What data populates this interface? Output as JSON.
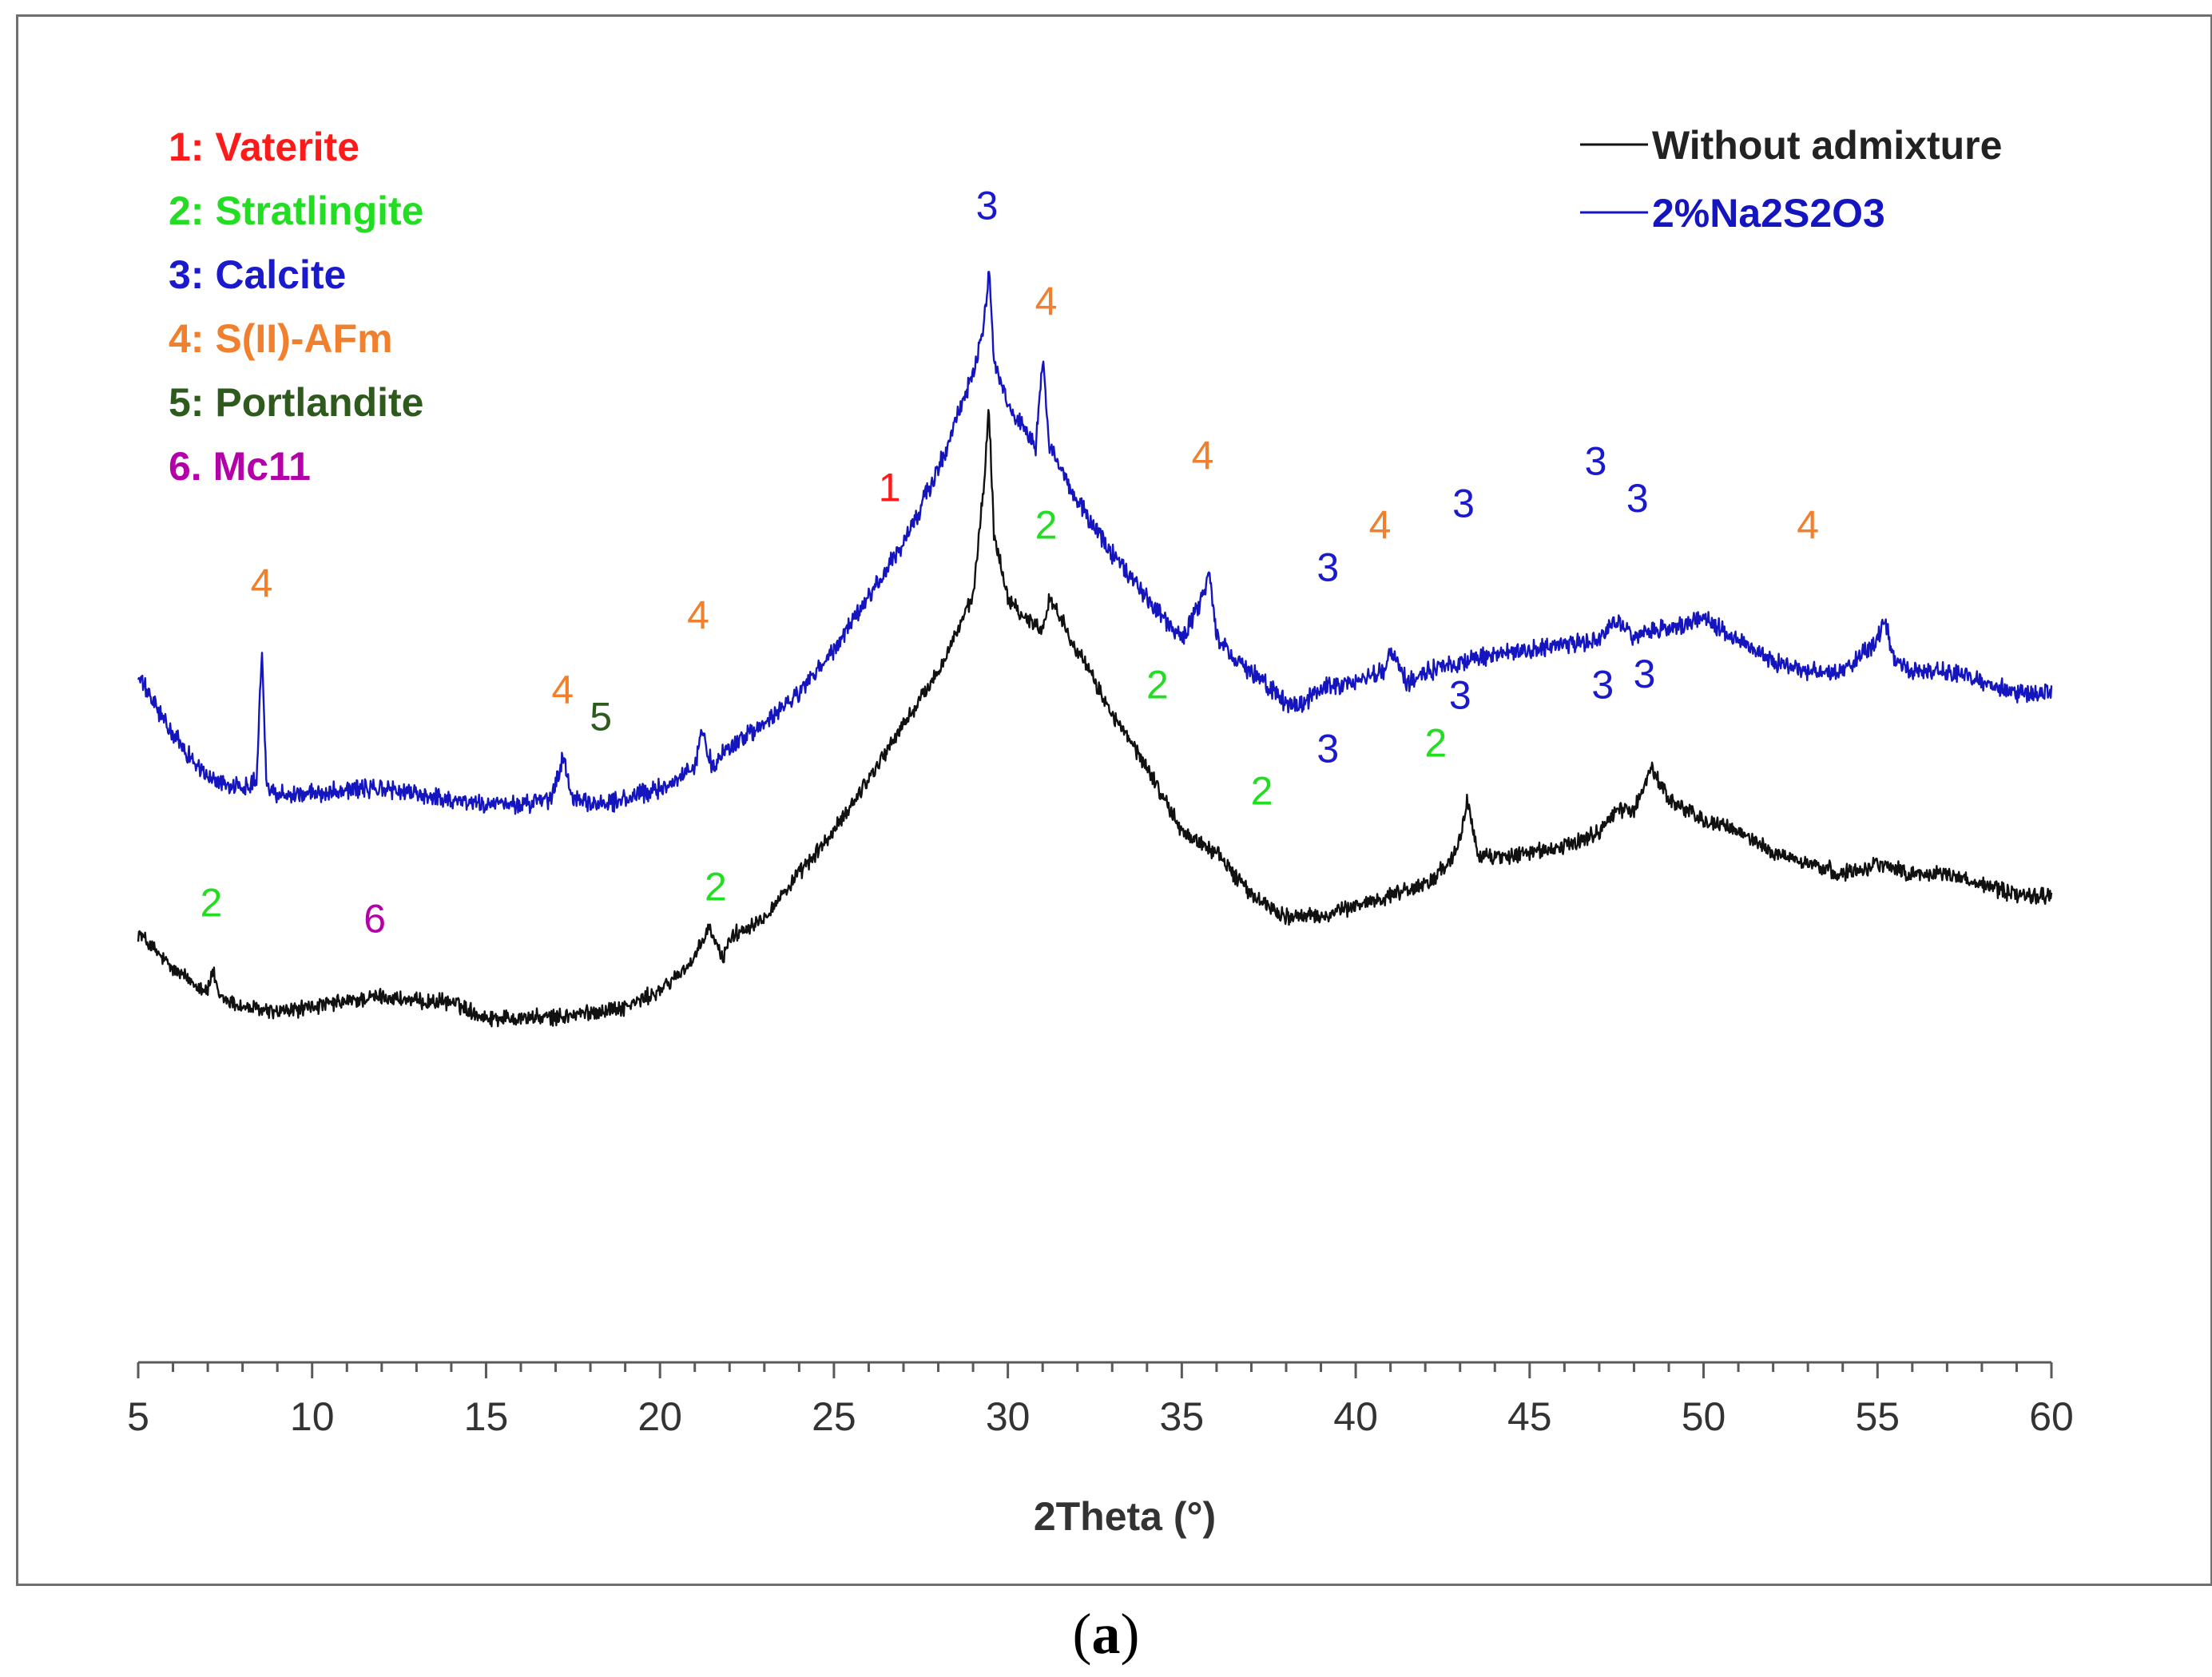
{
  "chart_data": {
    "type": "line",
    "title": "",
    "xlabel": "2Theta (°)",
    "ylabel": "",
    "xlim": [
      5,
      60
    ],
    "xticks": [
      5,
      10,
      15,
      20,
      25,
      30,
      35,
      40,
      45,
      50,
      55,
      60
    ],
    "minor_tick_step": 1,
    "legend_position": "top-right",
    "phase_key": [
      {
        "label": "1: Vaterite",
        "color": "#ff1a1a"
      },
      {
        "label": "2: Stratlingite",
        "color": "#22dd22"
      },
      {
        "label": "3: Calcite",
        "color": "#1a1acc"
      },
      {
        "label": "4: S(II)-AFm",
        "color": "#f07f2e"
      },
      {
        "label": "5: Portlandite",
        "color": "#2f5a1e"
      },
      {
        "label": "6. Mc11",
        "color": "#b300a8"
      }
    ],
    "series": [
      {
        "name": "Without admixture",
        "color": "#111111",
        "noise": 0.6,
        "x": [
          5,
          6,
          7,
          7.15,
          7.3,
          8,
          9,
          10,
          11,
          12,
          13,
          14,
          15,
          16,
          17,
          18,
          19,
          20,
          21,
          21.4,
          21.8,
          22,
          23,
          24,
          25,
          26,
          27,
          28,
          29,
          29.3,
          29.45,
          29.6,
          30,
          30.5,
          31,
          31.2,
          32,
          33,
          34,
          35,
          36,
          37,
          38,
          39,
          40,
          41,
          42,
          42.7,
          43,
          43.2,
          43.5,
          44,
          45,
          46,
          47,
          47.5,
          48,
          48.5,
          49,
          50,
          51,
          52,
          53,
          54,
          55,
          56,
          57,
          58,
          59,
          60
        ],
        "y": [
          38.5,
          35,
          33,
          35,
          32.5,
          31.5,
          31,
          31.5,
          32,
          32.5,
          32,
          32,
          30.5,
          30.5,
          30.5,
          31,
          31.5,
          33,
          36,
          39,
          36,
          38,
          40,
          44,
          48,
          53,
          58,
          63,
          70,
          80,
          88,
          76,
          70,
          68,
          67,
          70,
          65,
          59,
          54,
          48,
          46,
          42,
          40,
          40,
          41,
          42,
          43,
          45,
          47,
          51,
          46,
          45.5,
          46,
          46.5,
          48,
          50,
          50,
          54,
          51,
          49,
          48,
          46,
          45,
          44,
          45,
          44,
          44,
          43,
          42,
          42
        ]
      },
      {
        "name": "2%Na2S2O3",
        "color": "#1515bf",
        "noise": 0.7,
        "x": [
          5,
          6,
          7,
          8,
          8.4,
          8.55,
          8.7,
          9,
          10,
          11,
          12,
          13,
          14,
          15,
          16,
          16.9,
          17.2,
          17.5,
          18,
          19,
          20,
          21,
          21.2,
          21.5,
          22,
          23,
          24,
          25,
          26,
          26.6,
          27,
          28,
          29,
          29.3,
          29.45,
          29.6,
          30,
          30.8,
          31,
          31.2,
          32,
          33,
          34,
          35,
          35.6,
          35.8,
          36,
          37,
          38,
          38.5,
          39,
          40,
          40.8,
          41,
          41.5,
          42,
          43,
          44,
          45,
          46,
          47,
          47.5,
          48,
          48.5,
          49,
          50,
          51,
          52,
          53,
          54,
          55,
          55.2,
          55.5,
          56,
          57,
          58,
          59,
          60
        ],
        "y": [
          62.5,
          57,
          53,
          52,
          53,
          65,
          52,
          51.5,
          51.5,
          52,
          52,
          51.5,
          51,
          50.5,
          50.5,
          51,
          55,
          51,
          50.5,
          51,
          52,
          54,
          57.5,
          54,
          56,
          58,
          61,
          65,
          70,
          73,
          75,
          82,
          91,
          95,
          101,
          92,
          88,
          84,
          92,
          84,
          79,
          74,
          70,
          66,
          70,
          72,
          66,
          63,
          60,
          60,
          61.5,
          62,
          63,
          65,
          62,
          63,
          64,
          64.5,
          65,
          65.5,
          66,
          68,
          66,
          67,
          67,
          68,
          66,
          64,
          63,
          63,
          66,
          68,
          64,
          63,
          63,
          62,
          61,
          61
        ]
      }
    ],
    "peak_labels": [
      {
        "text": "4",
        "x": 8.55,
        "y": 70,
        "color": "#f07f2e"
      },
      {
        "text": "4",
        "x": 17.2,
        "y": 60,
        "color": "#f07f2e"
      },
      {
        "text": "5",
        "x": 18.3,
        "y": 57.5,
        "color": "#2f5a1e"
      },
      {
        "text": "4",
        "x": 21.1,
        "y": 67,
        "color": "#f07f2e"
      },
      {
        "text": "1",
        "x": 26.6,
        "y": 79,
        "color": "#ff1a1a"
      },
      {
        "text": "3",
        "x": 29.4,
        "y": 105.5,
        "color": "#1a1acc"
      },
      {
        "text": "4",
        "x": 31.1,
        "y": 96.5,
        "color": "#f07f2e"
      },
      {
        "text": "4",
        "x": 35.6,
        "y": 82,
        "color": "#f07f2e"
      },
      {
        "text": "3",
        "x": 39.2,
        "y": 71.5,
        "color": "#1a1acc"
      },
      {
        "text": "4",
        "x": 40.7,
        "y": 75.5,
        "color": "#f07f2e"
      },
      {
        "text": "3",
        "x": 43.1,
        "y": 77.5,
        "color": "#1a1acc"
      },
      {
        "text": "3",
        "x": 46.9,
        "y": 81.5,
        "color": "#1a1acc"
      },
      {
        "text": "3",
        "x": 48.1,
        "y": 78,
        "color": "#1a1acc"
      },
      {
        "text": "4",
        "x": 53,
        "y": 75.5,
        "color": "#f07f2e"
      },
      {
        "text": "2",
        "x": 31.1,
        "y": 75.5,
        "color": "#22dd22"
      },
      {
        "text": "2",
        "x": 34.3,
        "y": 60.5,
        "color": "#22dd22"
      },
      {
        "text": "2",
        "x": 37.3,
        "y": 50.5,
        "color": "#22dd22"
      },
      {
        "text": "3",
        "x": 39.2,
        "y": 54.5,
        "color": "#1a1acc"
      },
      {
        "text": "2",
        "x": 42.3,
        "y": 55,
        "color": "#22dd22"
      },
      {
        "text": "3",
        "x": 43,
        "y": 59.5,
        "color": "#1a1acc"
      },
      {
        "text": "3",
        "x": 47.1,
        "y": 60.5,
        "color": "#1a1acc"
      },
      {
        "text": "3",
        "x": 48.3,
        "y": 61.5,
        "color": "#1a1acc"
      },
      {
        "text": "2",
        "x": 7.1,
        "y": 40,
        "color": "#22dd22"
      },
      {
        "text": "6",
        "x": 11.8,
        "y": 38.5,
        "color": "#b300a8"
      },
      {
        "text": "2",
        "x": 21.6,
        "y": 41.5,
        "color": "#22dd22"
      }
    ]
  },
  "caption": {
    "open": "(",
    "label": "a",
    "close": ")"
  }
}
